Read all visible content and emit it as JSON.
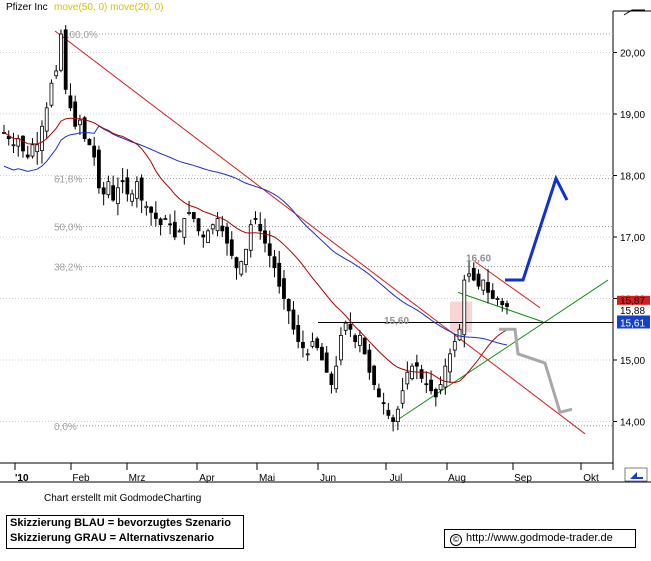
{
  "header": {
    "symbol": "Pfizer Inc",
    "indicators": "move(50, 0) move(20, 0)"
  },
  "chart_data": {
    "type": "candlestick",
    "symbol": "Pfizer Inc",
    "y_axis": {
      "min": 13.9,
      "max": 20.5,
      "ticks": [
        14.0,
        15.0,
        16.0,
        17.0,
        18.0,
        19.0,
        20.0
      ],
      "tick_labels": [
        "14,00",
        "15,00",
        "16,00",
        "17,00",
        "18,00",
        "19,00",
        "20,00"
      ]
    },
    "x_axis": {
      "year_label": "'10",
      "months": [
        "Feb",
        "Mrz",
        "Apr",
        "Mai",
        "Jun",
        "Jul",
        "Aug",
        "Sep",
        "Okt"
      ]
    },
    "fibonacci": [
      {
        "label": "100,0%",
        "value": 20.3
      },
      {
        "label": "61,8%",
        "value": 17.95
      },
      {
        "label": "50,0%",
        "value": 17.17
      },
      {
        "label": "38,2%",
        "value": 16.52
      },
      {
        "label": "0,0%",
        "value": 13.93
      }
    ],
    "price_labels": {
      "current_box": "15,87",
      "last": "15,88",
      "support": "15,61"
    },
    "annotations": [
      {
        "text": "16,60",
        "value": 16.6
      },
      {
        "text": "15,60",
        "value": 15.6
      }
    ],
    "closes": [
      18.7,
      18.6,
      18.5,
      18.6,
      18.4,
      18.3,
      18.5,
      18.5,
      18.8,
      19.1,
      19.5,
      19.7,
      20.3,
      19.4,
      19.1,
      18.8,
      18.9,
      18.6,
      18.5,
      18.3,
      17.8,
      17.7,
      17.9,
      17.6,
      17.8,
      17.9,
      17.7,
      17.7,
      17.9,
      17.6,
      17.5,
      17.4,
      17.3,
      17.2,
      17.3,
      17.2,
      17.0,
      17.1,
      17.3,
      17.4,
      17.3,
      17.1,
      17.0,
      17.1,
      17.2,
      17.3,
      17.1,
      16.9,
      16.7,
      16.5,
      16.6,
      16.8,
      17.2,
      17.3,
      17.1,
      16.9,
      16.7,
      16.5,
      16.2,
      16.0,
      15.8,
      15.5,
      15.3,
      15.2,
      15.1,
      15.3,
      15.2,
      15.0,
      14.8,
      14.6,
      14.9,
      15.4,
      15.6,
      15.5,
      15.3,
      15.4,
      15.1,
      14.8,
      14.6,
      14.4,
      14.3,
      14.1,
      14.0,
      14.2,
      14.5,
      14.8,
      14.9,
      14.9,
      14.7,
      14.6,
      14.5,
      14.4,
      14.6,
      14.9,
      15.1,
      15.3,
      15.5,
      16.3,
      16.4,
      16.3,
      16.2,
      16.3,
      16.1,
      16.0,
      16.0,
      15.9,
      15.87
    ],
    "series": [
      {
        "name": "move(50, 0)",
        "color": "#1c2fc4"
      },
      {
        "name": "move(20, 0)",
        "color": "#b00000"
      }
    ],
    "scenario_blue": [
      16.3,
      16.3,
      17.95,
      17.6
    ],
    "scenario_gray": [
      15.5,
      15.1,
      14.95,
      14.15,
      14.15
    ]
  },
  "legend": {
    "blue": "Skizzierung BLAU = bevorzugtes Szenario",
    "gray": "Skizzierung GRAU = Alternativszenario"
  },
  "footer": {
    "credit": "Chart erstellt mit GodmodeCharting",
    "url": "http://www.godmode-trader.de",
    "copyright_symbol": "©"
  },
  "colors": {
    "blue": "#1030d0",
    "gray": "#a8a8a8",
    "red": "#d81c1c",
    "green": "#109010",
    "ma20": "#b00000",
    "ma50": "#1c2fc4"
  }
}
